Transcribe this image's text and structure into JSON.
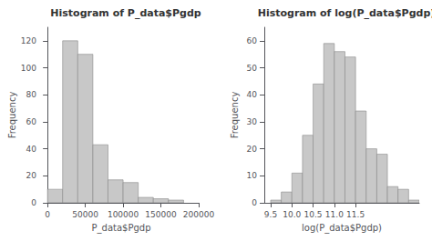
{
  "chart_data": [
    {
      "type": "histogram",
      "title": "Histogram of P_data$Pgdp",
      "xlabel": "P_data$Pgdp",
      "ylabel": "Frequency",
      "bins": [
        0,
        20000,
        40000,
        60000,
        80000,
        100000,
        120000,
        140000,
        160000,
        180000
      ],
      "values": [
        10,
        120,
        110,
        43,
        17,
        15,
        4,
        3,
        2
      ],
      "xlim": [
        -5000,
        200000
      ],
      "xticks": [
        0,
        50000,
        100000,
        150000,
        200000
      ],
      "ylim": [
        0,
        130
      ],
      "yticks": [
        0,
        20,
        40,
        60,
        80,
        100,
        120
      ],
      "color": "#c8c8c8",
      "grid": false
    },
    {
      "type": "histogram",
      "title": "Histogram of log(P_data$Pgdp)",
      "xlabel": "log(P_data$Pgdp)",
      "ylabel": "Frequency",
      "bins": [
        9.5,
        9.75,
        10.0,
        10.25,
        10.5,
        10.75,
        11.0,
        11.25,
        11.5,
        11.75,
        12.0,
        12.25,
        12.5,
        12.75,
        13.0
      ],
      "values": [
        1,
        4,
        11,
        25,
        44,
        59,
        56,
        54,
        34,
        20,
        18,
        6,
        5,
        1
      ],
      "xlim": [
        9.35,
        13.0
      ],
      "xticks": [
        9.5,
        {
          "value": 10.0,
          "label": "10.0"
        },
        10.5,
        {
          "value": 11.0,
          "label": "11.0"
        },
        11.5
      ],
      "ylim": [
        0,
        65
      ],
      "yticks": [
        0,
        10,
        20,
        30,
        40,
        50,
        60
      ],
      "color": "#c8c8c8",
      "grid": false
    }
  ]
}
